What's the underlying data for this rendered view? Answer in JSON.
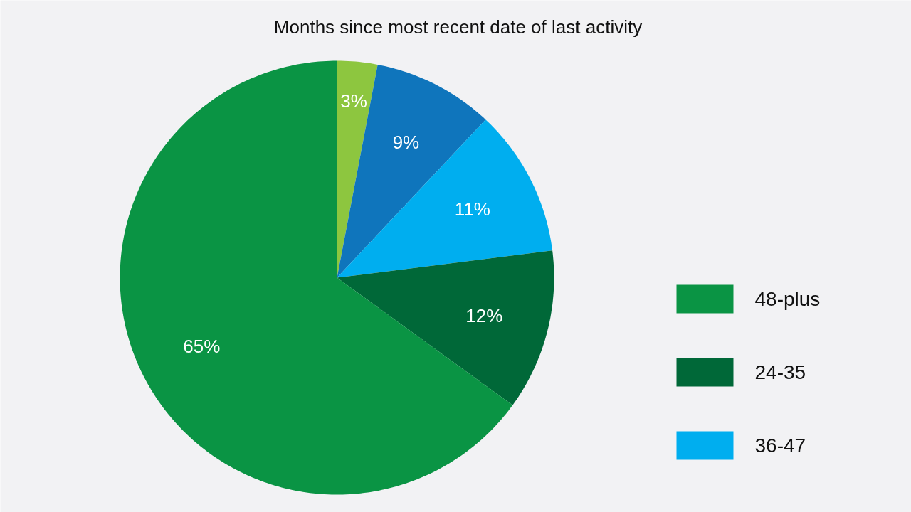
{
  "chart_data": {
    "type": "pie",
    "title": "Months since most recent date of last activity",
    "categories": [
      null,
      null,
      "36-47",
      "24-35",
      "48-plus"
    ],
    "values": [
      3,
      9,
      11,
      12,
      65
    ],
    "colors": [
      "#8dc63f",
      "#0f75bc",
      "#00aeef",
      "#006838",
      "#0a9444"
    ],
    "value_labels": [
      "3%",
      "9%",
      "11%",
      "12%",
      "65%"
    ],
    "legend": "right"
  }
}
